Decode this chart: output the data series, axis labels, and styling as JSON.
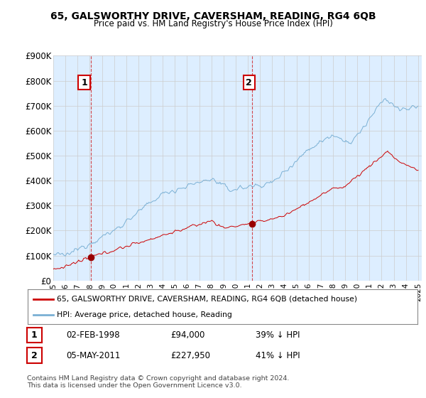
{
  "title": "65, GALSWORTHY DRIVE, CAVERSHAM, READING, RG4 6QB",
  "subtitle": "Price paid vs. HM Land Registry's House Price Index (HPI)",
  "ylim": [
    0,
    900000
  ],
  "yticks": [
    0,
    100000,
    200000,
    300000,
    400000,
    500000,
    600000,
    700000,
    800000,
    900000
  ],
  "ytick_labels": [
    "£0",
    "£100K",
    "£200K",
    "£300K",
    "£400K",
    "£500K",
    "£600K",
    "£700K",
    "£800K",
    "£900K"
  ],
  "sale1": {
    "date_num": 1998.09,
    "price": 94000,
    "label": "1",
    "date_str": "02-FEB-1998",
    "price_str": "£94,000",
    "pct_str": "39% ↓ HPI"
  },
  "sale2": {
    "date_num": 2011.34,
    "price": 227950,
    "label": "2",
    "date_str": "05-MAY-2011",
    "price_str": "£227,950",
    "pct_str": "41% ↓ HPI"
  },
  "vline1_x": 1998.09,
  "vline2_x": 2011.34,
  "line_color_red": "#cc0000",
  "line_color_blue": "#7ab0d4",
  "marker_color_red": "#990000",
  "grid_color": "#cccccc",
  "plot_bg_color": "#ddeeff",
  "background_color": "#ffffff",
  "legend_label_red": "65, GALSWORTHY DRIVE, CAVERSHAM, READING, RG4 6QB (detached house)",
  "legend_label_blue": "HPI: Average price, detached house, Reading",
  "footer": "Contains HM Land Registry data © Crown copyright and database right 2024.\nThis data is licensed under the Open Government Licence v3.0.",
  "xlim_start": 1995.0,
  "xlim_end": 2025.3
}
